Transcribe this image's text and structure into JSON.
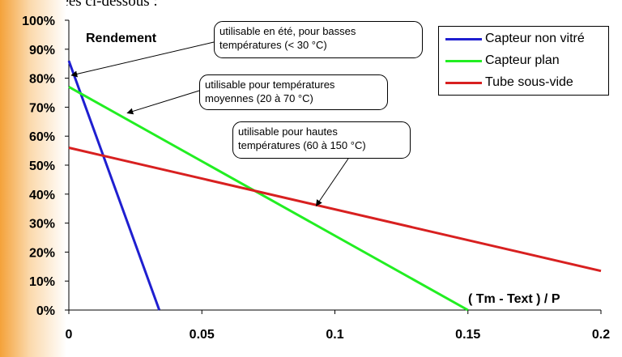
{
  "header_text": "sont données ci-dessous :",
  "chart_data": {
    "type": "line",
    "ylabel": "Rendement",
    "xlabel": "( Tm - Text ) / P",
    "xlim": [
      0,
      0.2
    ],
    "ylim": [
      0,
      100
    ],
    "x_ticks": [
      {
        "value": 0,
        "label": "0"
      },
      {
        "value": 0.05,
        "label": "0.05"
      },
      {
        "value": 0.1,
        "label": "0.1"
      },
      {
        "value": 0.15,
        "label": "0.15"
      },
      {
        "value": 0.2,
        "label": "0.2"
      }
    ],
    "y_ticks": [
      {
        "value": 0,
        "label": "0%"
      },
      {
        "value": 10,
        "label": "10%"
      },
      {
        "value": 20,
        "label": "20%"
      },
      {
        "value": 30,
        "label": "30%"
      },
      {
        "value": 40,
        "label": "40%"
      },
      {
        "value": 50,
        "label": "50%"
      },
      {
        "value": 60,
        "label": "60%"
      },
      {
        "value": 70,
        "label": "70%"
      },
      {
        "value": 80,
        "label": "80%"
      },
      {
        "value": 90,
        "label": "90%"
      },
      {
        "value": 100,
        "label": "100%"
      }
    ],
    "grid": false,
    "legend_position": "top-right",
    "series": [
      {
        "name": "Capteur non vitré",
        "color": "#1f1fd0",
        "x": [
          0,
          0.034
        ],
        "y": [
          86,
          0
        ]
      },
      {
        "name": "Capteur plan",
        "color": "#22ee22",
        "x": [
          0,
          0.15
        ],
        "y": [
          77,
          0
        ]
      },
      {
        "name": "Tube sous-vide",
        "color": "#d82020",
        "x": [
          0,
          0.2
        ],
        "y": [
          56,
          13.5
        ]
      }
    ],
    "annotations": [
      {
        "lines": [
          "utilisable en été, pour basses",
          "températures (< 30 °C)"
        ],
        "target": {
          "x": 0.001,
          "y": 81
        }
      },
      {
        "lines": [
          "utilisable pour températures",
          "moyennes (20 à 70 °C)"
        ],
        "target": {
          "x": 0.022,
          "y": 68
        }
      },
      {
        "lines": [
          "utilisable pour hautes",
          "températures (60 à 150 °C)"
        ],
        "target": {
          "x": 0.093,
          "y": 36
        }
      }
    ]
  }
}
